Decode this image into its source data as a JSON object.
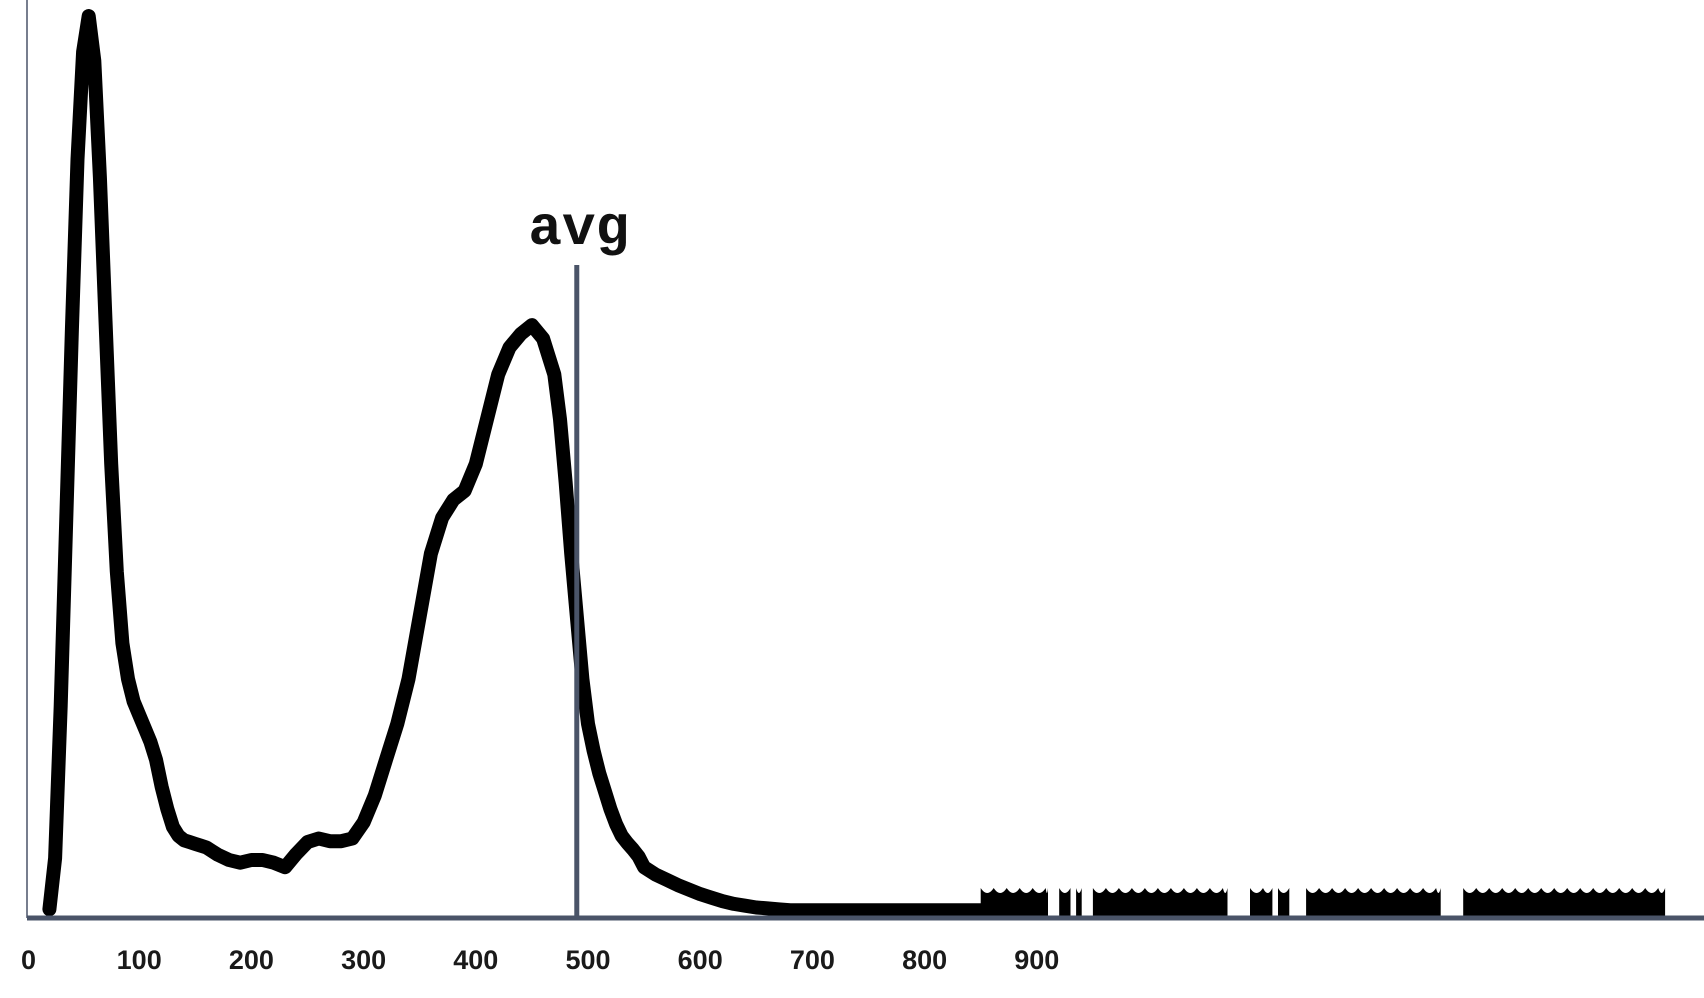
{
  "chart_data": {
    "type": "line",
    "title": "",
    "xlabel": "",
    "ylabel": "",
    "xlim": [
      0,
      1500
    ],
    "ylim": [
      0,
      1.0
    ],
    "x_ticks": [
      0,
      100,
      200,
      300,
      400,
      500,
      600,
      700,
      800,
      900
    ],
    "grid": false,
    "legend": "none",
    "colors": {
      "curve": "#000000",
      "axis": "#4a5468",
      "avg_line": "#4a5468"
    },
    "series": [
      {
        "x": [
          20,
          25,
          30,
          35,
          40,
          45,
          50,
          55,
          60,
          65,
          70,
          75,
          80,
          85,
          90,
          95,
          100,
          105,
          110,
          115,
          120,
          125,
          130,
          135,
          140,
          145,
          150,
          155,
          160,
          165,
          170,
          180,
          190,
          200,
          210,
          220,
          230,
          240,
          250,
          260,
          270,
          280,
          290,
          300,
          310,
          320,
          330,
          340,
          350,
          360,
          370,
          380,
          390,
          400,
          410,
          420,
          430,
          440,
          450,
          460,
          470,
          475,
          480,
          485,
          490,
          495,
          500,
          505,
          510,
          515,
          520,
          525,
          530,
          535,
          540,
          545,
          550,
          560,
          570,
          580,
          590,
          600,
          610,
          620,
          630,
          640,
          650,
          660,
          670,
          680,
          690,
          700,
          710,
          720,
          730,
          740,
          750,
          760,
          770,
          780,
          790,
          800,
          810,
          820,
          830,
          840,
          850
        ],
        "y": [
          0.003,
          0.06,
          0.23,
          0.44,
          0.65,
          0.84,
          0.96,
          1.0,
          0.95,
          0.82,
          0.66,
          0.5,
          0.38,
          0.3,
          0.26,
          0.235,
          0.22,
          0.205,
          0.19,
          0.17,
          0.14,
          0.115,
          0.095,
          0.085,
          0.08,
          0.078,
          0.076,
          0.074,
          0.072,
          0.068,
          0.064,
          0.058,
          0.055,
          0.058,
          0.058,
          0.055,
          0.05,
          0.065,
          0.078,
          0.082,
          0.079,
          0.079,
          0.082,
          0.1,
          0.13,
          0.17,
          0.21,
          0.26,
          0.33,
          0.4,
          0.44,
          0.46,
          0.47,
          0.5,
          0.55,
          0.6,
          0.63,
          0.645,
          0.655,
          0.64,
          0.6,
          0.55,
          0.48,
          0.4,
          0.33,
          0.26,
          0.21,
          0.18,
          0.155,
          0.135,
          0.115,
          0.098,
          0.085,
          0.077,
          0.07,
          0.062,
          0.05,
          0.042,
          0.036,
          0.03,
          0.025,
          0.02,
          0.016,
          0.012,
          0.009,
          0.007,
          0.005,
          0.004,
          0.003,
          0.002,
          0.002,
          0.002,
          0.002,
          0.002,
          0.002,
          0.002,
          0.002,
          0.002,
          0.002,
          0.002,
          0.002,
          0.002,
          0.002,
          0.002,
          0.002,
          0.002,
          0.002
        ]
      }
    ],
    "rug_segments": [
      [
        850,
        910
      ],
      [
        920,
        930
      ],
      [
        935,
        940
      ],
      [
        950,
        1070
      ],
      [
        1090,
        1110
      ],
      [
        1115,
        1125
      ],
      [
        1140,
        1260
      ],
      [
        1280,
        1460
      ]
    ],
    "annotations": [
      {
        "text": "avg",
        "x": 490
      }
    ]
  }
}
